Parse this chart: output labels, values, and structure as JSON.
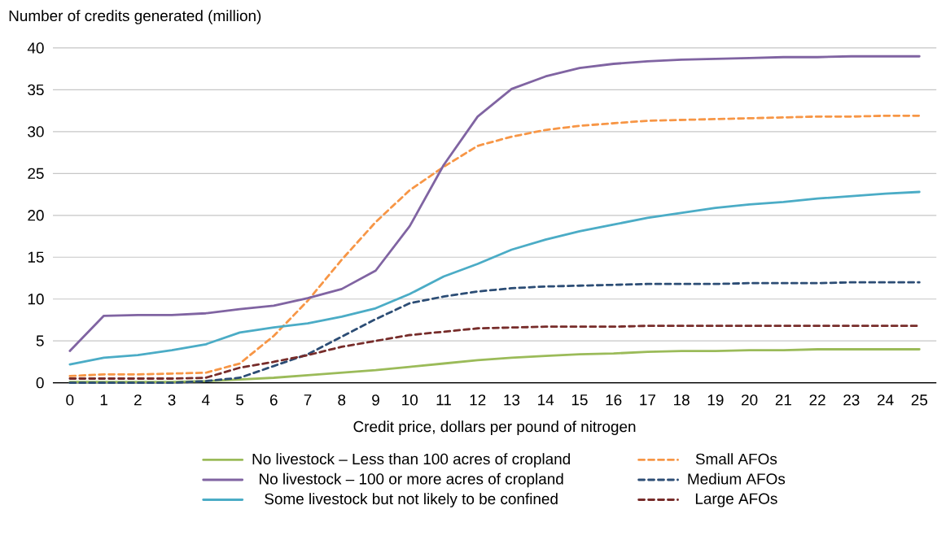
{
  "chart_data": {
    "type": "line",
    "ylabel": "Number of credits generated (million)",
    "xlabel": "Credit price, dollars per pound of nitrogen",
    "x": [
      0,
      1,
      2,
      3,
      4,
      5,
      6,
      7,
      8,
      9,
      10,
      11,
      12,
      13,
      14,
      15,
      16,
      17,
      18,
      19,
      20,
      21,
      22,
      23,
      24,
      25
    ],
    "xlim": [
      -0.5,
      25.5
    ],
    "xticks": [
      0,
      1,
      2,
      3,
      4,
      5,
      6,
      7,
      8,
      9,
      10,
      11,
      12,
      13,
      14,
      15,
      16,
      17,
      18,
      19,
      20,
      21,
      22,
      23,
      24,
      25
    ],
    "ylim": [
      0,
      40
    ],
    "yticks": [
      0,
      5,
      10,
      15,
      20,
      25,
      30,
      35,
      40
    ],
    "grid": "y",
    "legend": "bottom",
    "series": [
      {
        "name": "No livestock – Less than 100 acres of cropland",
        "color": "#9bbb59",
        "line_style": "solid",
        "values": [
          0.1,
          0.1,
          0.1,
          0.1,
          0.2,
          0.4,
          0.6,
          0.9,
          1.2,
          1.5,
          1.9,
          2.3,
          2.7,
          3.0,
          3.2,
          3.4,
          3.5,
          3.7,
          3.8,
          3.8,
          3.9,
          3.9,
          4.0,
          4.0,
          4.0,
          4.0
        ]
      },
      {
        "name": "No livestock – 100 or more acres of cropland",
        "color": "#8064a2",
        "line_style": "solid",
        "values": [
          3.8,
          8.0,
          8.1,
          8.1,
          8.3,
          8.8,
          9.2,
          10.1,
          11.2,
          13.4,
          18.7,
          26.0,
          31.8,
          35.1,
          36.6,
          37.6,
          38.1,
          38.4,
          38.6,
          38.7,
          38.8,
          38.9,
          38.9,
          39.0,
          39.0,
          39.0
        ]
      },
      {
        "name": "Some livestock but not likely to be confined",
        "color": "#4bacc6",
        "line_style": "solid",
        "values": [
          2.2,
          3.0,
          3.3,
          3.9,
          4.6,
          6.0,
          6.6,
          7.1,
          7.9,
          8.9,
          10.6,
          12.7,
          14.2,
          15.9,
          17.1,
          18.1,
          18.9,
          19.7,
          20.3,
          20.9,
          21.3,
          21.6,
          22.0,
          22.3,
          22.6,
          22.8
        ]
      },
      {
        "name": "Small AFOs",
        "color": "#f79646",
        "line_style": "dashed",
        "values": [
          0.8,
          1.0,
          1.0,
          1.1,
          1.2,
          2.3,
          5.6,
          9.8,
          14.7,
          19.2,
          23.0,
          25.8,
          28.3,
          29.4,
          30.2,
          30.7,
          31.0,
          31.3,
          31.4,
          31.5,
          31.6,
          31.7,
          31.8,
          31.8,
          31.9,
          31.9
        ]
      },
      {
        "name": "Medium AFOs",
        "color": "#2c4d75",
        "line_style": "dashed",
        "values": [
          0,
          0,
          0,
          0,
          0.2,
          0.6,
          2.0,
          3.4,
          5.5,
          7.6,
          9.5,
          10.3,
          10.9,
          11.3,
          11.5,
          11.6,
          11.7,
          11.8,
          11.8,
          11.8,
          11.9,
          11.9,
          11.9,
          12.0,
          12.0,
          12.0
        ]
      },
      {
        "name": "Large AFOs",
        "color": "#772c2a",
        "line_style": "dashed",
        "values": [
          0.5,
          0.5,
          0.5,
          0.5,
          0.6,
          1.8,
          2.5,
          3.3,
          4.3,
          5.0,
          5.7,
          6.1,
          6.5,
          6.6,
          6.7,
          6.7,
          6.7,
          6.8,
          6.8,
          6.8,
          6.8,
          6.8,
          6.8,
          6.8,
          6.8,
          6.8
        ]
      }
    ]
  }
}
